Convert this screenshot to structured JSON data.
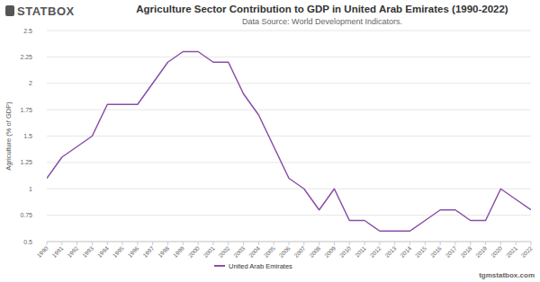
{
  "chart_data": {
    "type": "line",
    "title": "Agriculture Sector Contribution to GDP in United Arab Emirates (1990-2022)",
    "subtitle": "Data Source: World Development Indicators.",
    "logo": "STATBOX",
    "watermark": "tgmstatbox.com",
    "y_label": "Agriculture (% of GDP)",
    "categories": [
      "1990",
      "1991",
      "1992",
      "1993",
      "1994",
      "1995",
      "1996",
      "1997",
      "1998",
      "1999",
      "2000",
      "2001",
      "2002",
      "2003",
      "2004",
      "2005",
      "2006",
      "2007",
      "2008",
      "2009",
      "2010",
      "2011",
      "2012",
      "2013",
      "2014",
      "2015",
      "2016",
      "2017",
      "2018",
      "2019",
      "2020",
      "2021",
      "2022"
    ],
    "series": [
      {
        "name": "United Arab Emirates",
        "color": "#8a4fa8",
        "values": [
          1.1,
          1.3,
          1.4,
          1.5,
          1.8,
          1.8,
          1.8,
          2.0,
          2.2,
          2.3,
          2.3,
          2.2,
          2.2,
          1.9,
          1.7,
          1.4,
          1.1,
          1.0,
          0.8,
          1.0,
          0.7,
          0.7,
          0.6,
          0.6,
          0.6,
          0.7,
          0.8,
          0.8,
          0.7,
          0.7,
          1.0,
          0.9,
          0.8
        ]
      }
    ],
    "ylim": [
      0.5,
      2.5
    ],
    "yticks": [
      0.5,
      0.75,
      1,
      1.25,
      1.5,
      1.75,
      2,
      2.25,
      2.5
    ],
    "grid": true,
    "legend": "bottom"
  }
}
